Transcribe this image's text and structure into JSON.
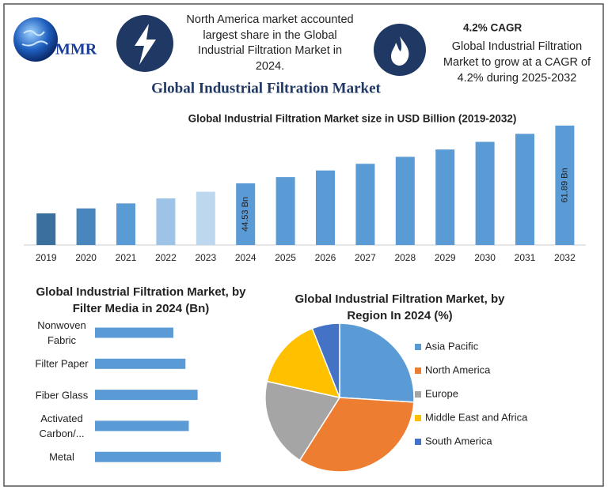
{
  "header": {
    "logo": "MMR",
    "note": "North America market accounted largest share in the Global Industrial Filtration Market in 2024.",
    "cagr_title": "4.2% CAGR",
    "cagr_text": "Global Industrial Filtration Market to grow at a CAGR of 4.2% during 2025-2032",
    "title": "Global Industrial Filtration Market"
  },
  "chart_data": [
    {
      "type": "bar",
      "title": "Global Industrial Filtration Market size in USD Billion (2019-2032)",
      "categories": [
        "2019",
        "2020",
        "2021",
        "2022",
        "2023",
        "2024",
        "2025",
        "2026",
        "2027",
        "2028",
        "2029",
        "2030",
        "2031",
        "2032"
      ],
      "values": [
        35.5,
        37,
        38.5,
        40,
        42,
        44.53,
        46.4,
        48.4,
        50.4,
        52.5,
        54.7,
        57,
        59.4,
        61.89
      ],
      "value_labels": [
        null,
        null,
        null,
        null,
        null,
        "44.53 Bn",
        null,
        null,
        null,
        null,
        null,
        null,
        null,
        "61.89 Bn"
      ],
      "colors": [
        "#3b6f9c",
        "#4a86be",
        "#5b9bd5",
        "#9dc3e6",
        "#bdd7ee",
        "#5b9bd5",
        "#5b9bd5",
        "#5b9bd5",
        "#5b9bd5",
        "#5b9bd5",
        "#5b9bd5",
        "#5b9bd5",
        "#5b9bd5",
        "#5b9bd5"
      ],
      "ylim": [
        26,
        64
      ]
    },
    {
      "type": "barh",
      "title": "Global Industrial Filtration Market, by Filter Media in 2024 (Bn)",
      "categories": [
        "Nonwoven Fabric",
        "Filter Paper",
        "Fiber Glass",
        "Activated Carbon/...",
        "Metal"
      ],
      "values": [
        7.1,
        8.2,
        9.3,
        8.5,
        11.4
      ],
      "color": "#5b9bd5",
      "xlim": [
        0,
        16
      ]
    },
    {
      "type": "pie",
      "title": "Global Industrial Filtration Market, by Region In 2024 (%)",
      "categories": [
        "Asia Pacific",
        "North America",
        "Europe",
        "Middle East and Africa",
        "South America"
      ],
      "values": [
        26,
        33,
        19.5,
        15.5,
        6
      ],
      "colors": [
        "#5b9bd5",
        "#ed7d31",
        "#a5a5a5",
        "#ffc000",
        "#4472c4"
      ]
    }
  ]
}
